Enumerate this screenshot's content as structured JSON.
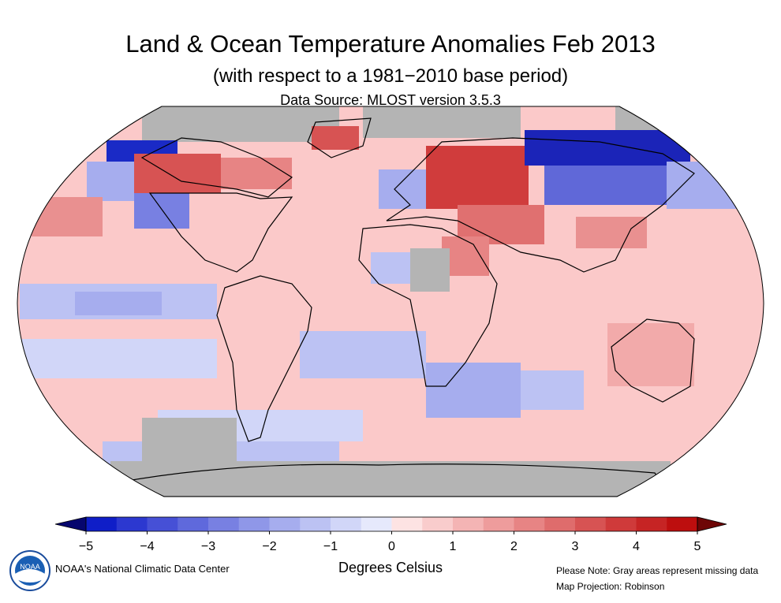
{
  "header": {
    "title": "Land & Ocean Temperature Anomalies Feb 2013",
    "subtitle": "(with respect to a 1981−2010 base period)",
    "source": "Data Source: MLOST version 3.5.3"
  },
  "legend": {
    "ticks": [
      "−5",
      "−4",
      "−3",
      "−2",
      "−1",
      "0",
      "1",
      "2",
      "3",
      "4",
      "5"
    ],
    "colors": [
      "#0f1ec8",
      "#2c38d0",
      "#4650d6",
      "#5f69dc",
      "#7880e2",
      "#8f97e8",
      "#a6adee",
      "#bcc2f3",
      "#d1d6f8",
      "#e6e9fc",
      "#fde3e3",
      "#f9cccc",
      "#f4b4b4",
      "#ee9c9c",
      "#e78484",
      "#df6c6c",
      "#d75353",
      "#cf3a3a",
      "#c62424",
      "#bd0e0e"
    ],
    "units": "Degrees Celsius"
  },
  "map": {
    "projection": "Robinson",
    "missing_color": "#b4b4b4",
    "base_color": "#fbc9c9"
  },
  "footer": {
    "credit": "NOAA's National Climatic Data Center",
    "note": "Please Note: Gray areas represent missing data",
    "projection_note": "Map Projection: Robinson",
    "logo_text": "NOAA"
  }
}
